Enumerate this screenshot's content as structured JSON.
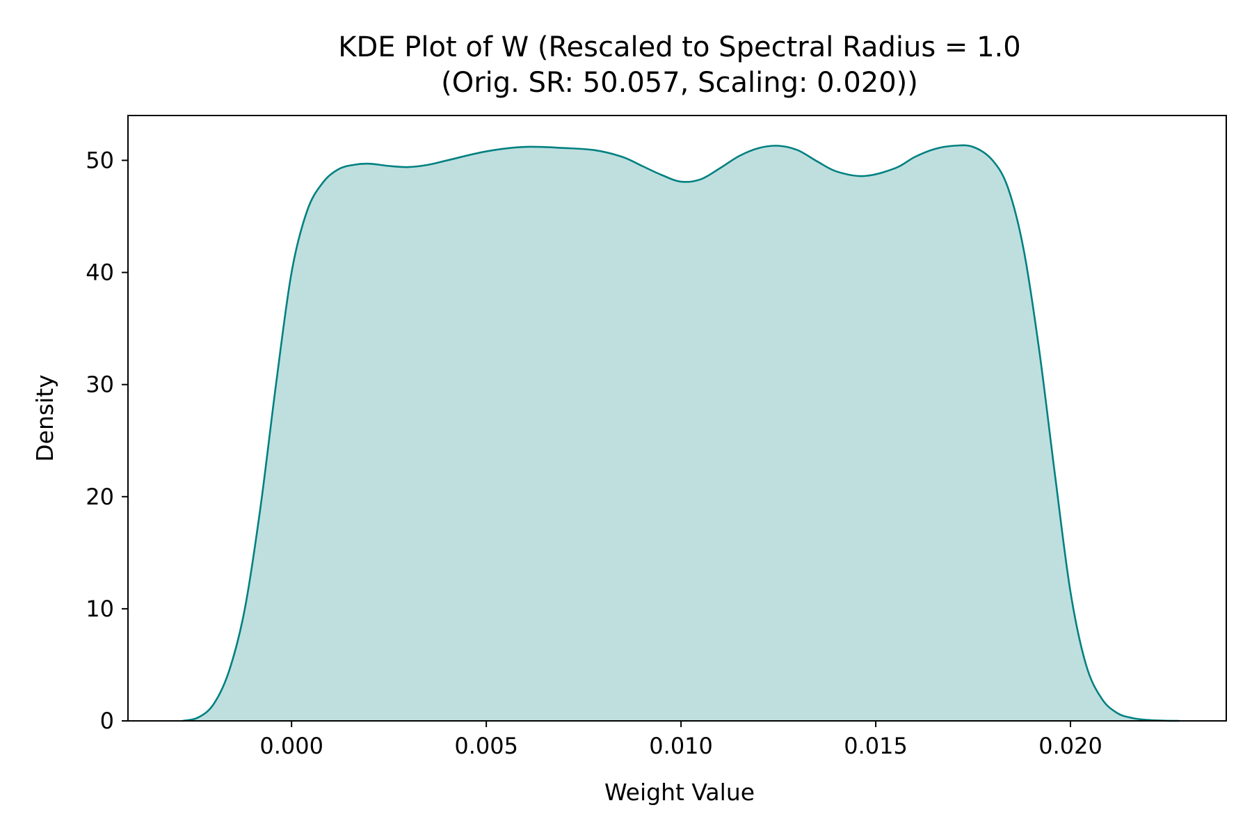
{
  "chart_data": {
    "type": "area",
    "title_lines": [
      "KDE Plot of W (Rescaled to Spectral Radius = 1.0",
      "(Orig. SR: 50.057, Scaling: 0.020))"
    ],
    "xlabel": "Weight Value",
    "ylabel": "Density",
    "xlim": [
      -0.0042,
      0.024
    ],
    "ylim": [
      0,
      54
    ],
    "xticks": [
      0.0,
      0.005,
      0.01,
      0.015,
      0.02
    ],
    "xtick_labels": [
      "0.000",
      "0.005",
      "0.010",
      "0.015",
      "0.020"
    ],
    "yticks": [
      0,
      10,
      20,
      30,
      40,
      50
    ],
    "ytick_labels": [
      "0",
      "10",
      "20",
      "30",
      "40",
      "50"
    ],
    "grid": false,
    "colors": {
      "line": "#008080",
      "fill": "#bfdfdf"
    },
    "series": [
      {
        "x": [
          -0.0028,
          -0.0024,
          -0.002,
          -0.0016,
          -0.0012,
          -0.0008,
          -0.0004,
          0.0,
          0.0004,
          0.0008,
          0.0012,
          0.0016,
          0.002,
          0.0025,
          0.003,
          0.0035,
          0.004,
          0.005,
          0.006,
          0.007,
          0.0078,
          0.0085,
          0.009,
          0.0095,
          0.01,
          0.0105,
          0.011,
          0.0115,
          0.012,
          0.0125,
          0.013,
          0.0135,
          0.014,
          0.0147,
          0.0155,
          0.016,
          0.0165,
          0.017,
          0.0175,
          0.018,
          0.0184,
          0.0188,
          0.0192,
          0.0196,
          0.02,
          0.0204,
          0.0208,
          0.0212,
          0.0216,
          0.022,
          0.0224,
          0.0228
        ],
        "y": [
          0.0,
          0.3,
          1.5,
          4.5,
          10.0,
          19.0,
          30.0,
          40.0,
          45.5,
          48.0,
          49.2,
          49.6,
          49.7,
          49.5,
          49.4,
          49.6,
          50.0,
          50.8,
          51.2,
          51.1,
          50.9,
          50.3,
          49.5,
          48.7,
          48.1,
          48.3,
          49.3,
          50.4,
          51.1,
          51.3,
          50.9,
          49.9,
          49.0,
          48.6,
          49.3,
          50.3,
          51.0,
          51.3,
          51.2,
          50.0,
          47.5,
          42.0,
          33.0,
          22.0,
          11.5,
          5.0,
          2.0,
          0.7,
          0.25,
          0.08,
          0.02,
          0.0
        ]
      }
    ]
  }
}
